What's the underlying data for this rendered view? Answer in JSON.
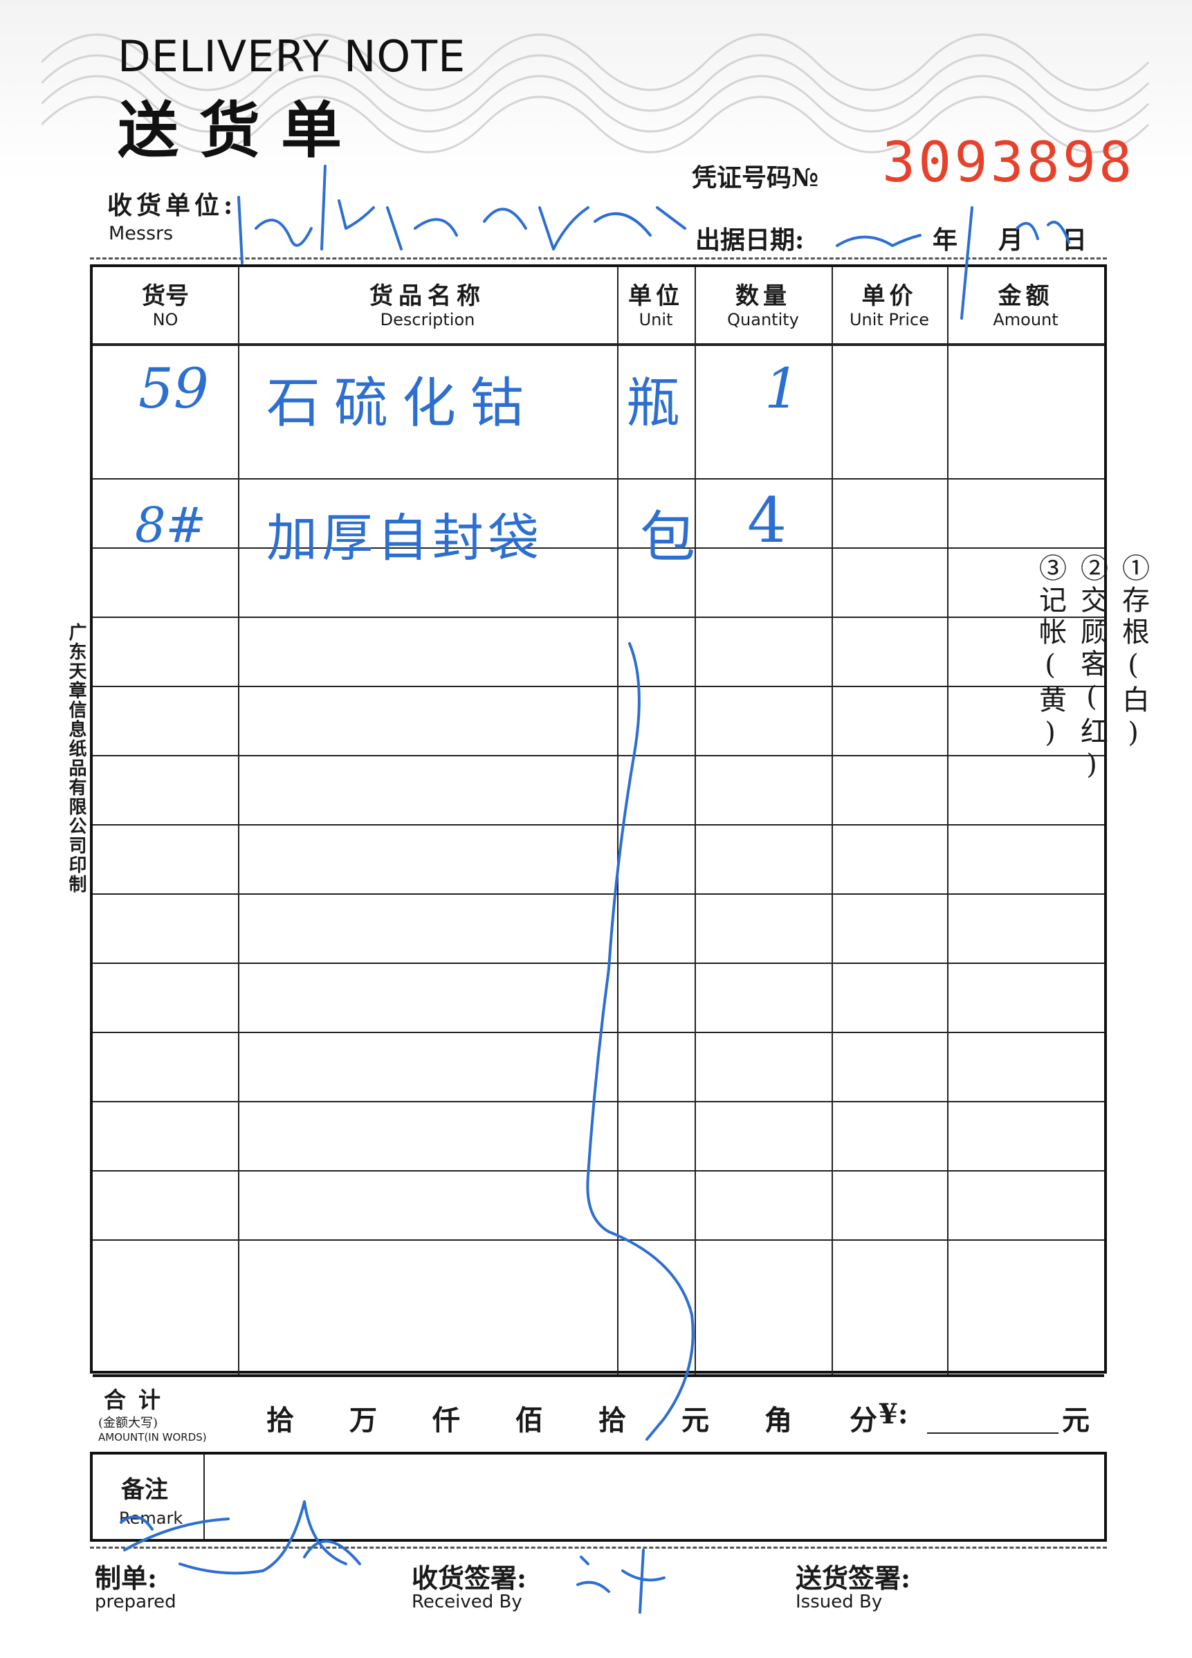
{
  "header": {
    "title_en": "DELIVERY NOTE",
    "title_cn": "送货单",
    "voucher_label": "凭证号码№",
    "voucher_number": "3093898",
    "voucher_number_color": "#e8412b",
    "messrs_cn": "收货单位:",
    "messrs_en": "Messrs",
    "date_label": "出据日期:",
    "date_year_char": "年",
    "date_month_char": "月",
    "date_day_char": "日"
  },
  "table": {
    "columns": [
      {
        "cn": "货号",
        "en": "NO"
      },
      {
        "cn": "货品名称",
        "en": "Description"
      },
      {
        "cn": "单位",
        "en": "Unit"
      },
      {
        "cn": "数量",
        "en": "Quantity"
      },
      {
        "cn": "单价",
        "en": "Unit Price"
      },
      {
        "cn": "金额",
        "en": "Amount"
      }
    ],
    "handwritten_rows": [
      {
        "no": "59",
        "description": "石硫化钴",
        "unit": "瓶",
        "quantity": "1"
      },
      {
        "no": "8#",
        "description": "加厚自封袋",
        "unit": "包",
        "quantity": "4"
      }
    ]
  },
  "total": {
    "label_cn": "合计",
    "label_sub_cn": "(金额大写)",
    "label_sub_en": "AMOUNT(IN WORDS)",
    "units": [
      "拾",
      "万",
      "仟",
      "佰",
      "拾",
      "元",
      "角",
      "分"
    ],
    "yen_label": "¥:",
    "yuan": "元"
  },
  "remark": {
    "label_cn": "备注",
    "label_en": "Remark"
  },
  "signatures": {
    "prepared_cn": "制单:",
    "prepared_en": "prepared",
    "received_cn": "收货签署:",
    "received_en": "Received By",
    "issued_cn": "送货签署:",
    "issued_en": "Issued By"
  },
  "side_printer": "广东天章信息纸品有限公司印制",
  "copies": [
    "①存根(白)",
    "②交顾客(红)",
    "③记帐(黄)"
  ],
  "ink_color": "#2c6fd1"
}
